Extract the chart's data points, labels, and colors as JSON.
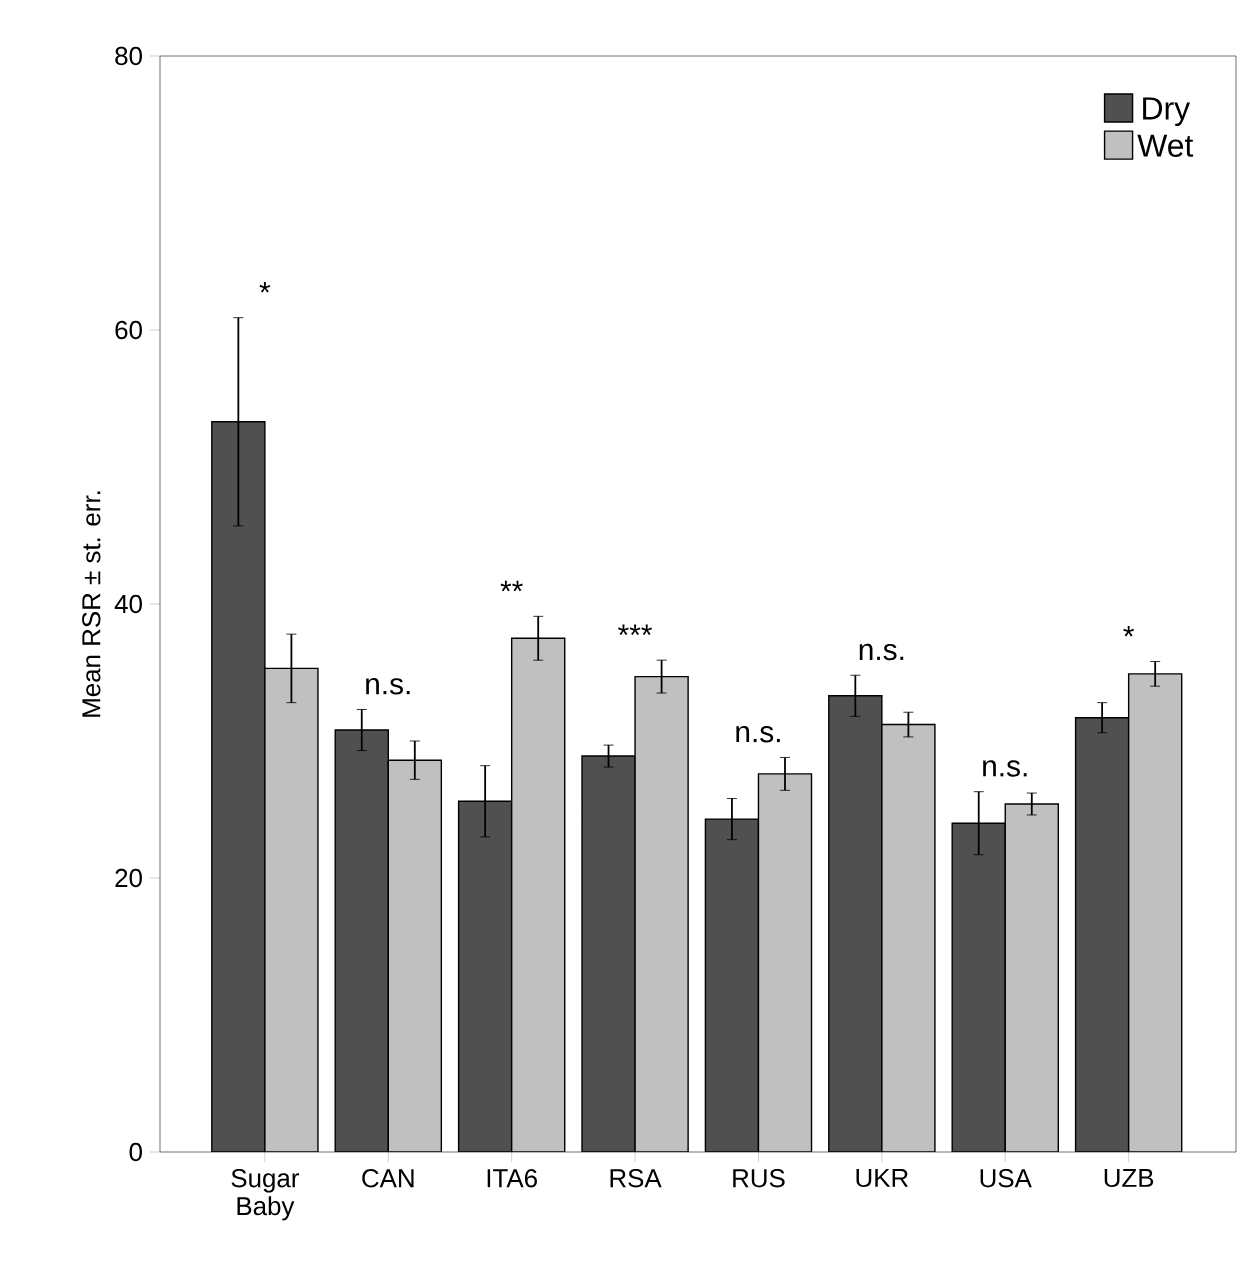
{
  "chart_data": {
    "type": "bar",
    "ylabel": "Mean RSR ± st. err.",
    "categories": [
      "Sugar Baby",
      "CAN",
      "ITA6",
      "RSA",
      "RUS",
      "UKR",
      "USA",
      "UZB"
    ],
    "series": [
      {
        "name": "Dry",
        "color": "#505050",
        "values": [
          53.3,
          30.8,
          25.6,
          28.9,
          24.3,
          33.3,
          24.0,
          31.7
        ],
        "errors": [
          7.6,
          1.5,
          2.6,
          0.8,
          1.5,
          1.5,
          2.3,
          1.1
        ]
      },
      {
        "name": "Wet",
        "color": "#c0c0c0",
        "values": [
          35.3,
          28.6,
          37.5,
          34.7,
          27.6,
          31.2,
          25.4,
          34.9
        ],
        "errors": [
          2.5,
          1.4,
          1.6,
          1.2,
          1.2,
          0.9,
          0.8,
          0.9
        ]
      }
    ],
    "ylim": [
      0,
      80
    ],
    "yticks": [
      0,
      20,
      40,
      60,
      80
    ],
    "grid": false,
    "legend": "top right",
    "annotations": [
      "*",
      "n.s.",
      "**",
      "***",
      "n.s.",
      "n.s.",
      "n.s.",
      "*"
    ]
  }
}
